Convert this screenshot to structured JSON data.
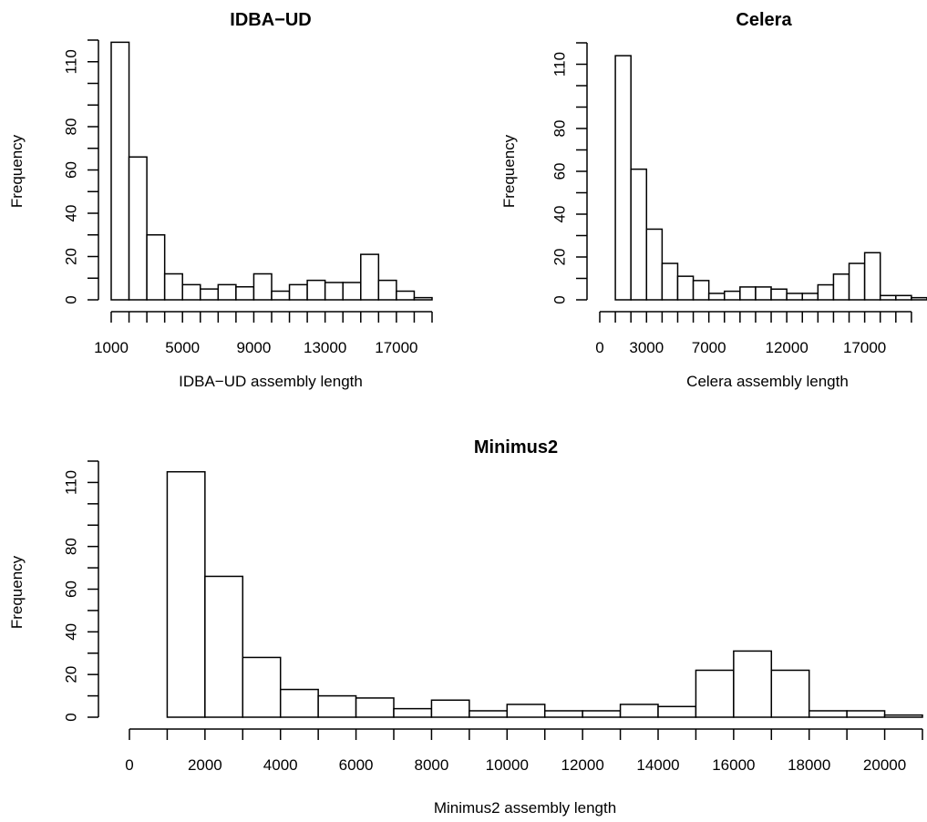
{
  "chart_data": [
    {
      "type": "bar",
      "title": "IDBA−UD",
      "xlabel": "IDBA−UD assembly length",
      "ylabel": "Frequency",
      "bin_edges": [
        1000,
        2000,
        3000,
        4000,
        5000,
        6000,
        7000,
        8000,
        9000,
        10000,
        11000,
        12000,
        13000,
        14000,
        15000,
        16000,
        17000,
        18000,
        19000
      ],
      "values": [
        119,
        66,
        30,
        12,
        7,
        5,
        7,
        6,
        12,
        4,
        7,
        9,
        8,
        8,
        21,
        9,
        4,
        1
      ],
      "xlim": [
        1000,
        19000
      ],
      "x_ticks": [
        1000,
        2000,
        3000,
        4000,
        5000,
        6000,
        7000,
        8000,
        9000,
        10000,
        11000,
        12000,
        13000,
        14000,
        15000,
        16000,
        17000,
        18000,
        19000
      ],
      "x_tick_labels": [
        "1000",
        "",
        "",
        "",
        "5000",
        "",
        "",
        "",
        "9000",
        "",
        "",
        "",
        "13000",
        "",
        "",
        "",
        "17000",
        "",
        ""
      ],
      "y_ticks": [
        0,
        10,
        20,
        30,
        40,
        50,
        60,
        70,
        80,
        90,
        100,
        110,
        120
      ],
      "y_tick_labels": [
        "0",
        "",
        "20",
        "",
        "40",
        "",
        "60",
        "",
        "80",
        "",
        "",
        "110",
        ""
      ],
      "ylim": [
        0,
        120
      ],
      "grid": false
    },
    {
      "type": "bar",
      "title": "Celera",
      "xlabel": "Celera assembly length",
      "ylabel": "Frequency",
      "bin_edges": [
        1000,
        2000,
        3000,
        4000,
        5000,
        6000,
        7000,
        8000,
        9000,
        10000,
        11000,
        12000,
        13000,
        14000,
        15000,
        16000,
        17000,
        18000,
        19000,
        20000,
        21000
      ],
      "values": [
        114,
        61,
        33,
        17,
        11,
        9,
        3,
        4,
        6,
        6,
        5,
        3,
        3,
        7,
        12,
        17,
        22,
        2,
        2,
        1
      ],
      "xlim": [
        0,
        21000
      ],
      "x_ticks": [
        0,
        1000,
        2000,
        3000,
        4000,
        5000,
        6000,
        7000,
        8000,
        9000,
        10000,
        11000,
        12000,
        13000,
        14000,
        15000,
        16000,
        17000,
        18000,
        19000,
        20000
      ],
      "x_tick_labels": [
        "0",
        "",
        "",
        "3000",
        "",
        "",
        "",
        "7000",
        "",
        "",
        "",
        "",
        "12000",
        "",
        "",
        "",
        "",
        "17000",
        "",
        "",
        ""
      ],
      "y_ticks": [
        0,
        10,
        20,
        30,
        40,
        50,
        60,
        70,
        80,
        90,
        100,
        110,
        120
      ],
      "y_tick_labels": [
        "0",
        "",
        "20",
        "",
        "40",
        "",
        "60",
        "",
        "80",
        "",
        "",
        "110",
        ""
      ],
      "ylim": [
        0,
        120
      ],
      "grid": false
    },
    {
      "type": "bar",
      "title": "Minimus2",
      "xlabel": "Minimus2 assembly length",
      "ylabel": "Frequency",
      "bin_edges": [
        1000,
        2000,
        3000,
        4000,
        5000,
        6000,
        7000,
        8000,
        9000,
        10000,
        11000,
        12000,
        13000,
        14000,
        15000,
        16000,
        17000,
        18000,
        19000,
        20000,
        21000
      ],
      "values": [
        115,
        66,
        28,
        13,
        10,
        9,
        4,
        8,
        3,
        6,
        3,
        3,
        6,
        5,
        22,
        31,
        22,
        3,
        3,
        1
      ],
      "xlim": [
        0,
        21000
      ],
      "x_ticks": [
        0,
        1000,
        2000,
        3000,
        4000,
        5000,
        6000,
        7000,
        8000,
        9000,
        10000,
        11000,
        12000,
        13000,
        14000,
        15000,
        16000,
        17000,
        18000,
        19000,
        20000,
        21000
      ],
      "x_tick_labels": [
        "0",
        "",
        "2000",
        "",
        "4000",
        "",
        "6000",
        "",
        "8000",
        "",
        "10000",
        "",
        "12000",
        "",
        "14000",
        "",
        "16000",
        "",
        "18000",
        "",
        "20000",
        ""
      ],
      "y_ticks": [
        0,
        10,
        20,
        30,
        40,
        50,
        60,
        70,
        80,
        90,
        100,
        110,
        120
      ],
      "y_tick_labels": [
        "0",
        "",
        "20",
        "",
        "40",
        "",
        "60",
        "",
        "80",
        "",
        "",
        "110",
        ""
      ],
      "ylim": [
        0,
        120
      ],
      "grid": false
    }
  ]
}
